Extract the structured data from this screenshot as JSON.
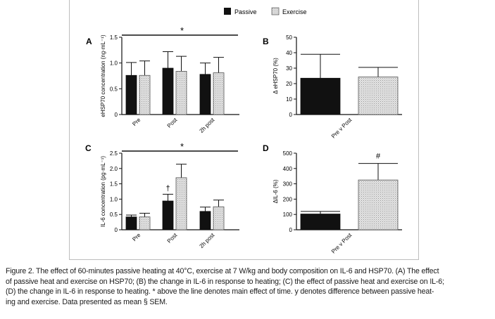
{
  "legend": {
    "items": [
      {
        "label": "Passive",
        "color": "#111111"
      },
      {
        "label": "Exercise",
        "color": "#d6d6d6"
      }
    ]
  },
  "chart_data": [
    {
      "panel": "A",
      "type": "bar",
      "ylabel": "eHSP70 concentration (ng·mL⁻¹)",
      "ylim": [
        0,
        1.5
      ],
      "yticks": [
        0,
        0.5,
        1.0,
        1.5
      ],
      "ytick_labels": [
        "0",
        "0.5",
        "1.0",
        "1.5"
      ],
      "categories": [
        "Pre",
        "Post",
        "2h post"
      ],
      "series": [
        {
          "name": "Passive",
          "values": [
            0.76,
            0.9,
            0.78
          ],
          "errors": [
            0.25,
            0.32,
            0.22
          ]
        },
        {
          "name": "Exercise",
          "values": [
            0.76,
            0.84,
            0.81
          ],
          "errors": [
            0.28,
            0.29,
            0.3
          ]
        }
      ],
      "annotation": "*"
    },
    {
      "panel": "B",
      "type": "bar",
      "ylabel": "Δ eHSP70 (%)",
      "ylim": [
        0,
        50
      ],
      "yticks": [
        0,
        10,
        20,
        30,
        40,
        50
      ],
      "ytick_labels": [
        "0",
        "10",
        "20",
        "30",
        "40",
        "50"
      ],
      "categories": [
        "Pre v Post"
      ],
      "series": [
        {
          "name": "Passive",
          "values": [
            23.5
          ],
          "errors": [
            15.5
          ]
        },
        {
          "name": "Exercise",
          "values": [
            24.3
          ],
          "errors": [
            6.2
          ]
        }
      ]
    },
    {
      "panel": "C",
      "type": "bar",
      "ylabel": "IL-6 concentration (pg·mL⁻¹)",
      "ylim": [
        0,
        2.5
      ],
      "yticks": [
        0,
        0.5,
        1.0,
        1.5,
        2.0,
        2.5
      ],
      "ytick_labels": [
        "0",
        "0.5",
        "1.0",
        "1.5",
        "2.0",
        "2.5"
      ],
      "categories": [
        "Pre",
        "Post",
        "2h post"
      ],
      "series": [
        {
          "name": "Passive",
          "values": [
            0.42,
            0.94,
            0.6
          ],
          "errors": [
            0.06,
            0.22,
            0.14
          ]
        },
        {
          "name": "Exercise",
          "values": [
            0.42,
            1.7,
            0.75
          ],
          "errors": [
            0.12,
            0.44,
            0.22
          ]
        }
      ],
      "annotation": "*",
      "marker": {
        "text": "†",
        "category": "Post"
      }
    },
    {
      "panel": "D",
      "type": "bar",
      "ylabel": "ΔIL-6 (%)",
      "ylim": [
        0,
        500
      ],
      "yticks": [
        0,
        100,
        200,
        300,
        400,
        500
      ],
      "ytick_labels": [
        "0",
        "100",
        "200",
        "300",
        "400",
        "500"
      ],
      "categories": [
        "Pre v Post"
      ],
      "series": [
        {
          "name": "Passive",
          "values": [
            103
          ],
          "errors": [
            17
          ]
        },
        {
          "name": "Exercise",
          "values": [
            325
          ],
          "errors": [
            108
          ]
        }
      ],
      "marker": {
        "text": "#"
      }
    }
  ],
  "caption": {
    "lines": [
      "Figure 2. The effect of 60-minutes passive heating at 40°C, exercise at 7 W/kg and body composition on IL-6 and HSP70. (A) The effect",
      "of passive heat and exercise on HSP70; (B) the change in IL-6 in response to heating; (C) the effect of passive heat and exercise on IL-6;",
      "(D) the change in IL-6 in response to heating. * above the line denotes main effect of time. y denotes difference between passive heat-",
      "ing and exercise. Data presented as mean § SEM."
    ]
  }
}
